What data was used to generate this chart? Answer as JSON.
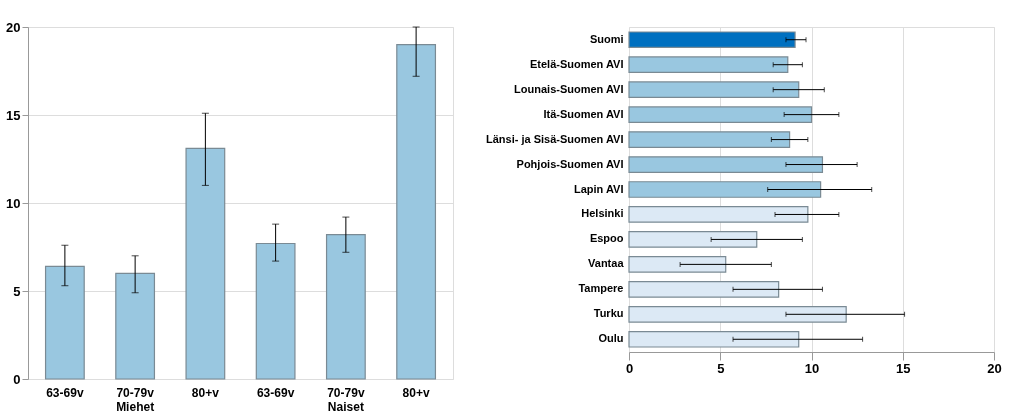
{
  "chart_data": [
    {
      "type": "bar",
      "categories": [
        "63-69v",
        "70-79v\nMiehet",
        "80+v",
        "63-69v",
        "70-79v\nNaiset",
        "80+v"
      ],
      "values": [
        6.4,
        6.0,
        13.1,
        7.7,
        8.2,
        19.0
      ],
      "errors": [
        [
          5.3,
          7.6
        ],
        [
          4.9,
          7.0
        ],
        [
          11.0,
          15.1
        ],
        [
          6.7,
          8.8
        ],
        [
          7.2,
          9.2
        ],
        [
          17.2,
          20.0
        ]
      ],
      "color": "#99c7e0",
      "ylim": [
        0,
        20
      ],
      "yticks": [
        0,
        5,
        10,
        15,
        20
      ],
      "grid": "y"
    },
    {
      "type": "bar",
      "orientation": "horizontal",
      "categories": [
        "Suomi",
        "Etelä-Suomen AVI",
        "Lounais-Suomen AVI",
        "Itä-Suomen AVI",
        "Länsi- ja Sisä-Suomen AVI",
        "Pohjois-Suomen AVI",
        "Lapin AVI",
        "Helsinki",
        "Espoo",
        "Vantaa",
        "Tampere",
        "Turku",
        "Oulu"
      ],
      "values": [
        9.1,
        8.7,
        9.3,
        10.0,
        8.8,
        10.6,
        10.5,
        9.8,
        7.0,
        5.3,
        8.2,
        11.9,
        9.3
      ],
      "errors": [
        [
          8.6,
          9.7
        ],
        [
          7.9,
          9.5
        ],
        [
          7.9,
          10.7
        ],
        [
          8.5,
          11.5
        ],
        [
          7.8,
          9.8
        ],
        [
          8.6,
          12.5
        ],
        [
          7.6,
          13.3
        ],
        [
          8.0,
          11.5
        ],
        [
          4.5,
          9.5
        ],
        [
          2.8,
          7.8
        ],
        [
          5.7,
          10.6
        ],
        [
          8.6,
          15.1
        ],
        [
          5.7,
          12.8
        ]
      ],
      "colors": [
        "#0070c0",
        "#99c7e0",
        "#99c7e0",
        "#99c7e0",
        "#99c7e0",
        "#99c7e0",
        "#99c7e0",
        "#dce9f5",
        "#dce9f5",
        "#dce9f5",
        "#dce9f5",
        "#dce9f5",
        "#dce9f5"
      ],
      "xlim": [
        0,
        20
      ],
      "xticks": [
        0,
        5,
        10,
        15,
        20
      ],
      "grid": "x"
    }
  ]
}
